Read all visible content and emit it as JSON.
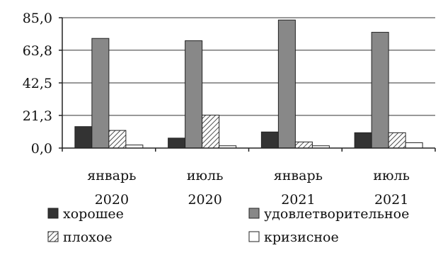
{
  "chart_data": {
    "type": "bar",
    "title": "",
    "xlabel": "",
    "ylabel": "",
    "ylim": [
      0,
      85
    ],
    "yticks": [
      "0,0",
      "21,3",
      "42,5",
      "63,8",
      "85,0"
    ],
    "ytick_values": [
      0,
      21.3,
      42.5,
      63.8,
      85.0
    ],
    "grid": true,
    "legend_position": "bottom",
    "categories": [
      {
        "line1": "январь",
        "line2": "2020"
      },
      {
        "line1": "июль",
        "line2": "2020"
      },
      {
        "line1": "январь",
        "line2": "2021"
      },
      {
        "line1": "июль",
        "line2": "2021"
      }
    ],
    "series": [
      {
        "name": "хорошее",
        "values": [
          14.0,
          6.5,
          10.5,
          10.0
        ],
        "color": "#333333",
        "pattern": "solid"
      },
      {
        "name": "удовлетворительное",
        "values": [
          71.5,
          70.0,
          83.5,
          75.5
        ],
        "color": "#888888",
        "pattern": "solid"
      },
      {
        "name": "плохое",
        "values": [
          11.5,
          21.5,
          4.0,
          10.0
        ],
        "color": "#ffffff",
        "pattern": "hatch"
      },
      {
        "name": "кризисное",
        "values": [
          2.0,
          1.5,
          1.5,
          3.5
        ],
        "color": "#ffffff",
        "pattern": "empty"
      }
    ]
  }
}
